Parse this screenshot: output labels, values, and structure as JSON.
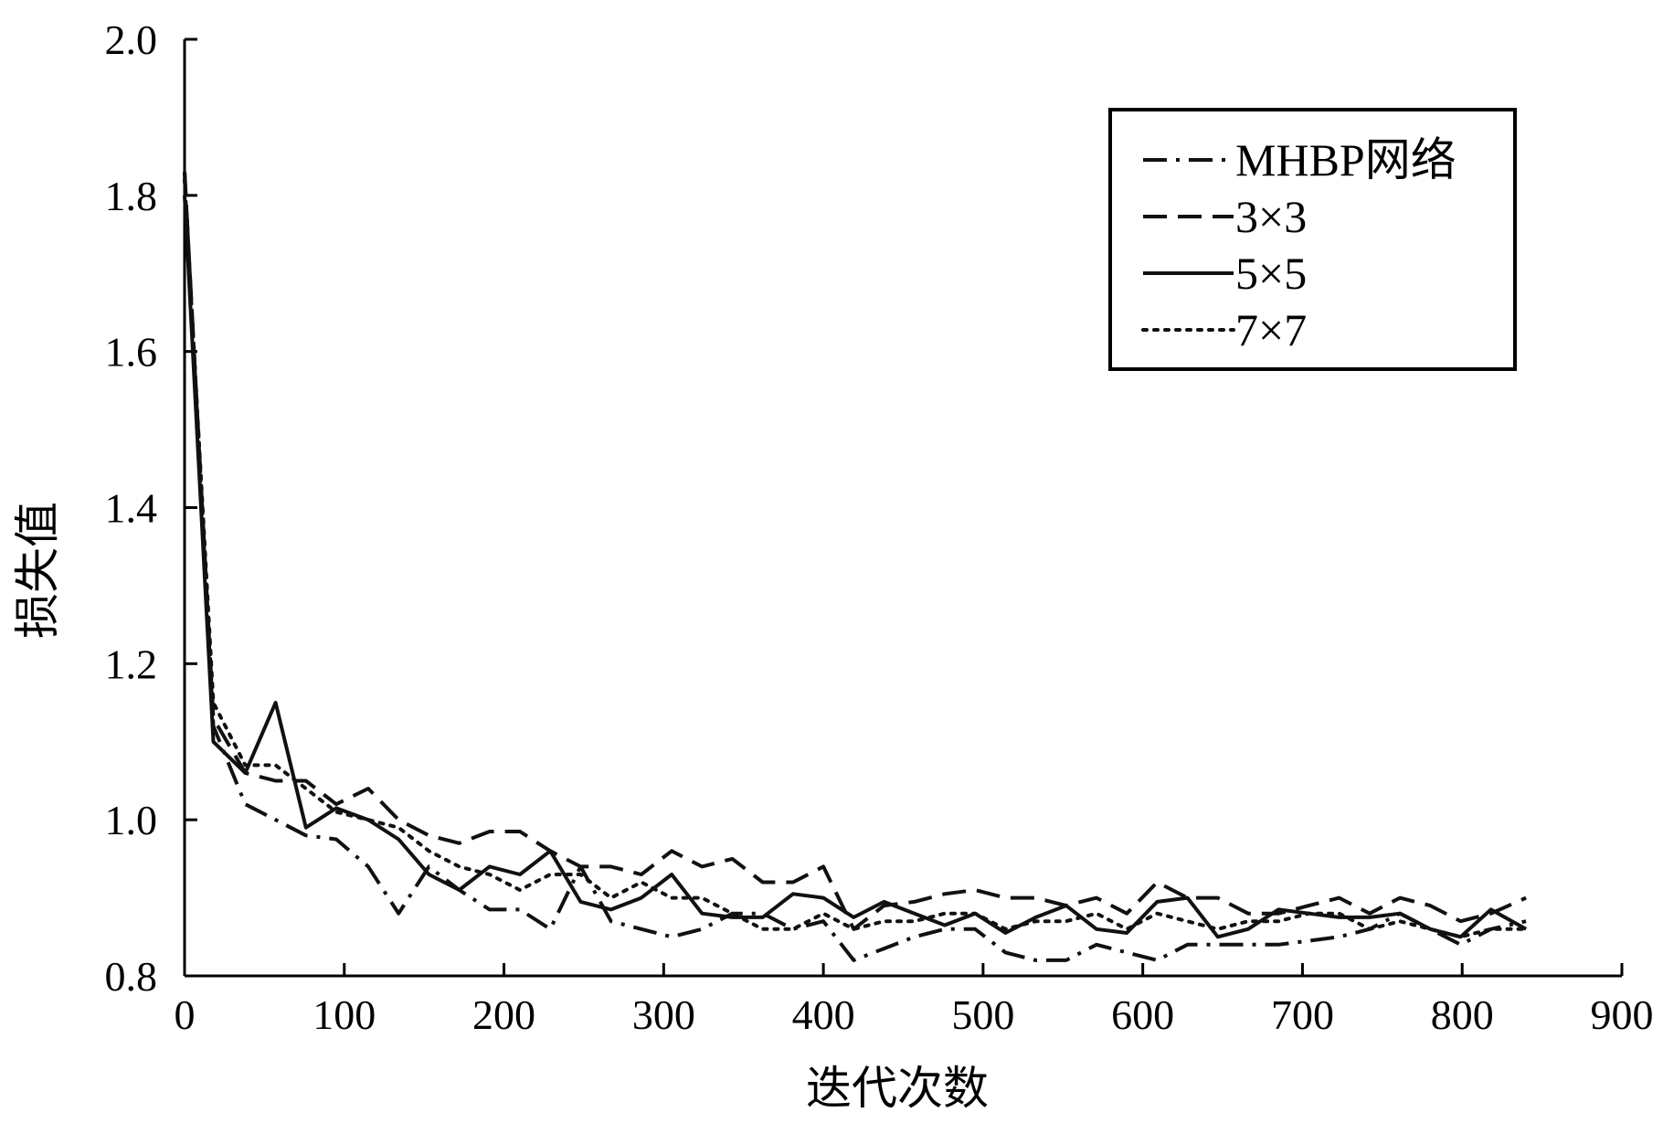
{
  "chart_data": {
    "type": "line",
    "xlabel": "迭代次数",
    "ylabel": "损失值",
    "xlim": [
      0,
      900
    ],
    "ylim": [
      0.8,
      2.0
    ],
    "x_ticks": [
      "0",
      "100",
      "200",
      "300",
      "400",
      "500",
      "600",
      "700",
      "800",
      "900"
    ],
    "y_ticks": [
      "0.8",
      "1.0",
      "1.2",
      "1.4",
      "1.6",
      "1.8",
      "2.0"
    ],
    "grid": false,
    "legend_position": "top-right",
    "series": [
      {
        "name": "MHBP网络",
        "style": "dash-dot",
        "x": [
          0,
          18,
          38,
          57,
          76,
          95,
          115,
          134,
          153,
          172,
          191,
          210,
          229,
          248,
          267,
          286,
          305,
          324,
          343,
          362,
          381,
          400,
          419,
          438,
          457,
          476,
          495,
          514,
          533,
          552,
          571,
          590,
          609,
          628,
          647,
          666,
          685,
          704,
          723,
          742,
          761,
          780,
          799,
          818,
          840
        ],
        "y": [
          1.83,
          1.12,
          1.02,
          1.0,
          0.98,
          0.975,
          0.94,
          0.88,
          0.94,
          0.91,
          0.885,
          0.885,
          0.86,
          0.94,
          0.87,
          0.86,
          0.85,
          0.86,
          0.88,
          0.88,
          0.86,
          0.87,
          0.82,
          0.835,
          0.85,
          0.86,
          0.86,
          0.83,
          0.82,
          0.82,
          0.84,
          0.83,
          0.82,
          0.84,
          0.84,
          0.84,
          0.84,
          0.845,
          0.85,
          0.86,
          0.88,
          0.86,
          0.84,
          0.86,
          0.87
        ]
      },
      {
        "name": "3×3",
        "style": "dashed",
        "x": [
          0,
          18,
          38,
          57,
          76,
          95,
          115,
          134,
          153,
          172,
          191,
          210,
          229,
          248,
          267,
          286,
          305,
          324,
          343,
          362,
          381,
          400,
          419,
          438,
          457,
          476,
          495,
          514,
          533,
          552,
          571,
          590,
          609,
          628,
          647,
          666,
          685,
          704,
          723,
          742,
          761,
          780,
          799,
          818,
          840
        ],
        "y": [
          1.83,
          1.13,
          1.06,
          1.05,
          1.05,
          1.02,
          1.04,
          1.0,
          0.98,
          0.97,
          0.985,
          0.985,
          0.96,
          0.94,
          0.94,
          0.93,
          0.96,
          0.94,
          0.95,
          0.92,
          0.92,
          0.94,
          0.86,
          0.89,
          0.895,
          0.905,
          0.91,
          0.9,
          0.9,
          0.89,
          0.9,
          0.88,
          0.92,
          0.9,
          0.9,
          0.88,
          0.88,
          0.89,
          0.9,
          0.88,
          0.9,
          0.89,
          0.87,
          0.88,
          0.9
        ]
      },
      {
        "name": "5×5",
        "style": "solid",
        "x": [
          0,
          18,
          38,
          57,
          76,
          95,
          115,
          134,
          153,
          172,
          191,
          210,
          229,
          248,
          267,
          286,
          305,
          324,
          343,
          362,
          381,
          400,
          419,
          438,
          457,
          476,
          495,
          514,
          533,
          552,
          571,
          590,
          609,
          628,
          647,
          666,
          685,
          704,
          723,
          742,
          761,
          780,
          799,
          818,
          840
        ],
        "y": [
          1.8,
          1.1,
          1.06,
          1.15,
          0.99,
          1.015,
          1.0,
          0.975,
          0.93,
          0.91,
          0.94,
          0.93,
          0.96,
          0.895,
          0.885,
          0.9,
          0.93,
          0.88,
          0.875,
          0.875,
          0.905,
          0.9,
          0.875,
          0.895,
          0.88,
          0.865,
          0.88,
          0.855,
          0.875,
          0.89,
          0.86,
          0.855,
          0.895,
          0.9,
          0.85,
          0.86,
          0.885,
          0.88,
          0.875,
          0.875,
          0.88,
          0.86,
          0.85,
          0.885,
          0.86
        ]
      },
      {
        "name": "7×7",
        "style": "dotted",
        "x": [
          0,
          18,
          38,
          57,
          76,
          95,
          115,
          134,
          153,
          172,
          191,
          210,
          229,
          248,
          267,
          286,
          305,
          324,
          343,
          362,
          381,
          400,
          419,
          438,
          457,
          476,
          495,
          514,
          533,
          552,
          571,
          590,
          609,
          628,
          647,
          666,
          685,
          704,
          723,
          742,
          761,
          780,
          799,
          818,
          840
        ],
        "y": [
          1.82,
          1.15,
          1.07,
          1.07,
          1.04,
          1.01,
          1.0,
          0.99,
          0.96,
          0.94,
          0.93,
          0.91,
          0.93,
          0.93,
          0.9,
          0.92,
          0.9,
          0.9,
          0.88,
          0.86,
          0.86,
          0.88,
          0.86,
          0.87,
          0.87,
          0.88,
          0.88,
          0.86,
          0.87,
          0.87,
          0.88,
          0.86,
          0.88,
          0.87,
          0.86,
          0.87,
          0.87,
          0.88,
          0.88,
          0.86,
          0.87,
          0.86,
          0.85,
          0.86,
          0.86
        ]
      }
    ]
  }
}
